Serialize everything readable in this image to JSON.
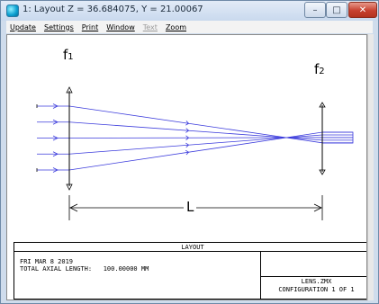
{
  "window": {
    "title": "1: Layout Z = 36.684075, Y = 21.00067",
    "controls": {
      "minimize": "–",
      "maximize": "□",
      "close": "✕"
    },
    "icon": "zemax-app-icon"
  },
  "menu": {
    "items": [
      {
        "label": "Update",
        "enabled": true
      },
      {
        "label": "Settings",
        "enabled": true
      },
      {
        "label": "Print",
        "enabled": true
      },
      {
        "label": "Window",
        "enabled": true
      },
      {
        "label": "Text",
        "enabled": false
      },
      {
        "label": "Zoom",
        "enabled": true
      }
    ]
  },
  "plot": {
    "lens1_label": "f",
    "lens1_subscript": "1",
    "lens2_label": "f",
    "lens2_subscript": "2",
    "length_label": "L",
    "ray_color": "#3b3bdc",
    "ray_count": 5
  },
  "info": {
    "title": "LAYOUT",
    "date": "FRI MAR 8 2019",
    "total_axial_length": "TOTAL AXIAL LENGTH:   100.00000 MM",
    "filename": "LENS.ZMX",
    "configuration": "CONFIGURATION 1 OF 1"
  }
}
